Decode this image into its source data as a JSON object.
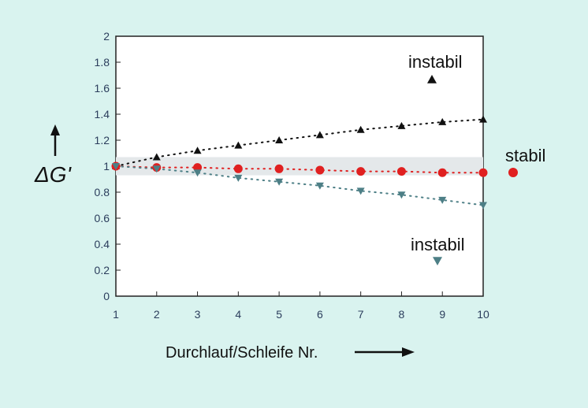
{
  "chart_data": {
    "type": "scatter",
    "xlabel": "Durchlauf/Schleife Nr.",
    "ylabel": "ΔG'",
    "xlim": [
      1,
      10
    ],
    "ylim": [
      0,
      2
    ],
    "x_ticks": [
      1,
      2,
      3,
      4,
      5,
      6,
      7,
      8,
      9,
      10
    ],
    "y_ticks": [
      0,
      0.2,
      0.4,
      0.6,
      0.8,
      1,
      1.2,
      1.4,
      1.6,
      1.8,
      2
    ],
    "y_tick_labels": [
      "0",
      "0.2",
      "0.4",
      "0.6",
      "0.8",
      "1",
      "1.2",
      "1.4",
      "1.6",
      "1.8",
      "2"
    ],
    "band": [
      0.93,
      1.07
    ],
    "series": [
      {
        "marker": "triangle-up",
        "color": "#111111",
        "x": [
          1,
          2,
          3,
          4,
          5,
          6,
          7,
          8,
          9,
          10
        ],
        "y": [
          1.0,
          1.07,
          1.12,
          1.16,
          1.2,
          1.24,
          1.28,
          1.31,
          1.34,
          1.36
        ]
      },
      {
        "marker": "circle",
        "color": "#e02020",
        "x": [
          1,
          2,
          3,
          4,
          5,
          6,
          7,
          8,
          9,
          10
        ],
        "y": [
          1.0,
          0.99,
          0.99,
          0.98,
          0.98,
          0.97,
          0.96,
          0.96,
          0.95,
          0.95
        ]
      },
      {
        "marker": "triangle-down",
        "color": "#4d7f86",
        "x": [
          1,
          2,
          3,
          4,
          5,
          6,
          7,
          8,
          9,
          10
        ],
        "y": [
          1.0,
          0.98,
          0.95,
          0.91,
          0.88,
          0.85,
          0.81,
          0.78,
          0.74,
          0.7
        ]
      }
    ],
    "annotations": [
      {
        "text": "instabil",
        "marker": "triangle-up",
        "color": "#111111"
      },
      {
        "text": "stabil",
        "marker": "circle",
        "color": "#e02020"
      },
      {
        "text": "instabil",
        "marker": "triangle-down",
        "color": "#4d7f86"
      }
    ]
  }
}
